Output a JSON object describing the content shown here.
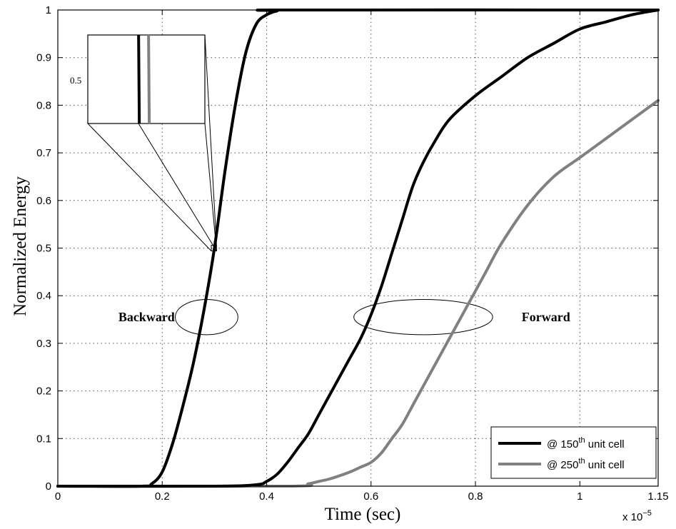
{
  "chart_data": {
    "type": "line",
    "title": "",
    "xlabel": "Time (sec)",
    "ylabel": "Normalized Energy",
    "x_multiplier": "x 10",
    "x_multiplier_exponent": "−5",
    "xlim": [
      0,
      1.15
    ],
    "ylim": [
      0,
      1
    ],
    "x_ticks": [
      0,
      0.2,
      0.4,
      0.6,
      0.8,
      1,
      1.15
    ],
    "x_tick_labels": [
      "0",
      "0.2",
      "0.4",
      "0.6",
      "0.8",
      "1",
      "1.15"
    ],
    "y_ticks": [
      0,
      0.1,
      0.2,
      0.3,
      0.4,
      0.5,
      0.6,
      0.7,
      0.8,
      0.9,
      1
    ],
    "y_tick_labels": [
      "0",
      "0.1",
      "0.2",
      "0.3",
      "0.4",
      "0.5",
      "0.6",
      "0.7",
      "0.8",
      "0.9",
      "1"
    ],
    "grid": true,
    "legend_position": "bottom-right",
    "series": [
      {
        "name": "@ 150th unit cell",
        "label_prefix": "@ 150",
        "label_sup": "th",
        "label_suffix": " unit cell",
        "color": "#000000",
        "backward": [
          [
            0,
            0
          ],
          [
            0.16,
            0
          ],
          [
            0.18,
            0.005
          ],
          [
            0.2,
            0.03
          ],
          [
            0.22,
            0.09
          ],
          [
            0.24,
            0.17
          ],
          [
            0.26,
            0.26
          ],
          [
            0.28,
            0.37
          ],
          [
            0.3,
            0.5
          ],
          [
            0.32,
            0.66
          ],
          [
            0.34,
            0.8
          ],
          [
            0.36,
            0.91
          ],
          [
            0.38,
            0.97
          ],
          [
            0.4,
            0.99
          ],
          [
            0.42,
            0.998
          ],
          [
            0.44,
            1
          ],
          [
            1.15,
            1
          ]
        ],
        "forward": [
          [
            0,
            0
          ],
          [
            0.3,
            0
          ],
          [
            0.38,
            0.003
          ],
          [
            0.4,
            0.01
          ],
          [
            0.42,
            0.025
          ],
          [
            0.44,
            0.05
          ],
          [
            0.46,
            0.08
          ],
          [
            0.48,
            0.11
          ],
          [
            0.5,
            0.15
          ],
          [
            0.52,
            0.19
          ],
          [
            0.54,
            0.23
          ],
          [
            0.56,
            0.27
          ],
          [
            0.58,
            0.31
          ],
          [
            0.6,
            0.36
          ],
          [
            0.62,
            0.42
          ],
          [
            0.64,
            0.49
          ],
          [
            0.66,
            0.56
          ],
          [
            0.68,
            0.63
          ],
          [
            0.7,
            0.68
          ],
          [
            0.72,
            0.72
          ],
          [
            0.75,
            0.77
          ],
          [
            0.8,
            0.82
          ],
          [
            0.85,
            0.86
          ],
          [
            0.9,
            0.9
          ],
          [
            0.95,
            0.93
          ],
          [
            1.0,
            0.96
          ],
          [
            1.05,
            0.975
          ],
          [
            1.1,
            0.99
          ],
          [
            1.15,
            1
          ]
        ]
      },
      {
        "name": "@ 250th unit cell",
        "label_prefix": "@ 250",
        "label_sup": "th",
        "label_suffix": " unit cell",
        "color": "#808080",
        "backward": [
          [
            0,
            0
          ],
          [
            0.16,
            0
          ],
          [
            0.18,
            0.005
          ],
          [
            0.2,
            0.03
          ],
          [
            0.22,
            0.09
          ],
          [
            0.24,
            0.17
          ],
          [
            0.26,
            0.26
          ],
          [
            0.28,
            0.37
          ],
          [
            0.3,
            0.5
          ],
          [
            0.32,
            0.66
          ],
          [
            0.34,
            0.8
          ],
          [
            0.36,
            0.91
          ],
          [
            0.38,
            0.97
          ],
          [
            0.4,
            0.99
          ],
          [
            0.42,
            0.998
          ],
          [
            0.44,
            1
          ],
          [
            1.15,
            1
          ]
        ],
        "forward": [
          [
            0,
            0
          ],
          [
            0.44,
            0
          ],
          [
            0.48,
            0.005
          ],
          [
            0.5,
            0.01
          ],
          [
            0.52,
            0.015
          ],
          [
            0.54,
            0.022
          ],
          [
            0.56,
            0.03
          ],
          [
            0.58,
            0.04
          ],
          [
            0.6,
            0.05
          ],
          [
            0.62,
            0.07
          ],
          [
            0.64,
            0.1
          ],
          [
            0.66,
            0.13
          ],
          [
            0.68,
            0.17
          ],
          [
            0.7,
            0.21
          ],
          [
            0.72,
            0.25
          ],
          [
            0.74,
            0.29
          ],
          [
            0.76,
            0.33
          ],
          [
            0.78,
            0.37
          ],
          [
            0.8,
            0.41
          ],
          [
            0.82,
            0.45
          ],
          [
            0.85,
            0.51
          ],
          [
            0.9,
            0.59
          ],
          [
            0.95,
            0.65
          ],
          [
            1.0,
            0.69
          ],
          [
            1.05,
            0.73
          ],
          [
            1.1,
            0.77
          ],
          [
            1.15,
            0.81
          ]
        ]
      }
    ],
    "annotations": [
      {
        "text": "Backward",
        "x": 0.17,
        "y": 0.355
      },
      {
        "text": "Forward",
        "x": 0.935,
        "y": 0.355
      }
    ],
    "ellipses": [
      {
        "name": "backward",
        "cx": 0.285,
        "cy": 0.355,
        "rx": 0.06,
        "ry": 0.037
      },
      {
        "name": "forward",
        "cx": 0.7,
        "cy": 0.355,
        "rx": 0.133,
        "ry": 0.037
      }
    ],
    "inset": {
      "label": "0.5",
      "zoom_box": {
        "x0": 0.294,
        "x1": 0.304,
        "y0": 0.494,
        "y1": 0.506
      }
    }
  }
}
